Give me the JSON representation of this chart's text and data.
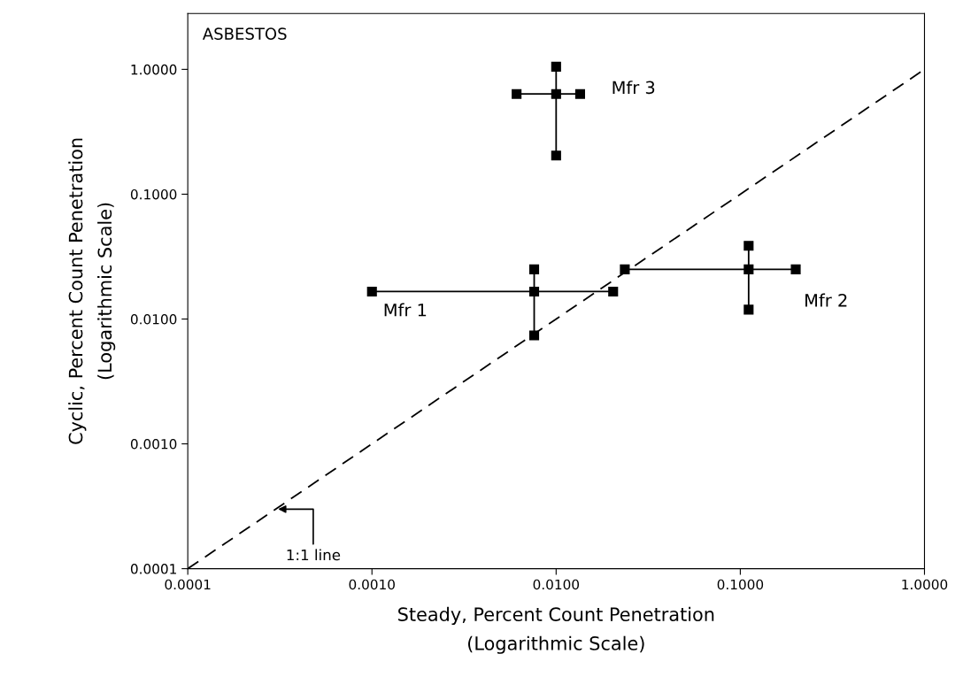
{
  "chart_data": {
    "type": "line",
    "title": "ASBESTOS",
    "xlabel": "Steady, Percent Count Penetration\n(Logarithmic Scale)",
    "ylabel": "Cyclic, Percent Count Penetration\n(Logarithmic Scale)",
    "log": "xy",
    "grid": false,
    "marker": "square",
    "xlim": [
      0.0001,
      1
    ],
    "ylim": [
      0.0001,
      2.8
    ],
    "xticks": [
      {
        "value": 0.0001,
        "label": "0.0001"
      },
      {
        "value": 0.001,
        "label": "0.0010"
      },
      {
        "value": 0.01,
        "label": "0.0100"
      },
      {
        "value": 0.1,
        "label": "0.1000"
      },
      {
        "value": 1,
        "label": "1.0000"
      }
    ],
    "yticks": [
      {
        "value": 0.0001,
        "label": "0.0001"
      },
      {
        "value": 0.001,
        "label": "0.0010"
      },
      {
        "value": 0.01,
        "label": "0.0100"
      },
      {
        "value": 0.1,
        "label": "0.1000"
      },
      {
        "value": 1,
        "label": "1.0000"
      }
    ],
    "series": [
      {
        "name": "Mfr 1",
        "color": "#000000",
        "x": [
          0.001,
          0.0076,
          0.0204,
          null,
          0.0076,
          0.0076
        ],
        "values": [
          0.0166,
          0.0166,
          0.0166,
          null,
          0.0074,
          0.025
        ]
      },
      {
        "name": "Mfr 2",
        "color": "#000000",
        "x": [
          0.0236,
          0.111,
          0.2,
          null,
          0.111,
          0.111
        ],
        "values": [
          0.025,
          0.025,
          0.025,
          null,
          0.0119,
          0.0386
        ]
      },
      {
        "name": "Mfr 3",
        "color": "#000000",
        "x": [
          0.0061,
          0.01,
          0.0135,
          null,
          0.01,
          0.01
        ],
        "values": [
          0.635,
          0.635,
          0.635,
          null,
          0.204,
          1.05
        ]
      },
      {
        "color": "#000000",
        "line_style": "dashed",
        "marker": "none",
        "x": [
          0.0001,
          1
        ],
        "values": [
          0.0001,
          1
        ]
      }
    ],
    "annotations": [
      {
        "text": "1:1 line",
        "x": 0.0003,
        "y": 0.0003
      }
    ]
  }
}
